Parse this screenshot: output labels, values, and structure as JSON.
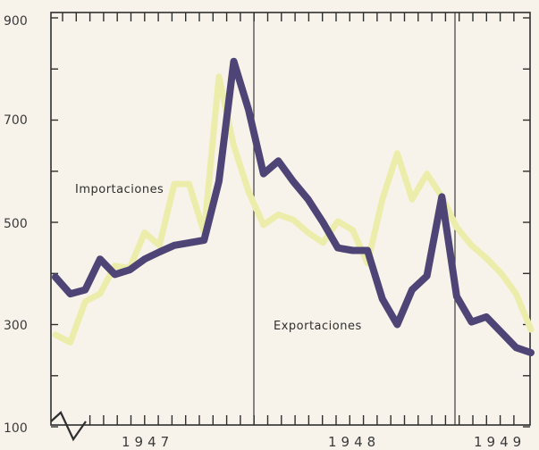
{
  "chart_data": {
    "type": "line",
    "x": [
      "1947-01",
      "1947-02",
      "1947-03",
      "1947-04",
      "1947-05",
      "1947-06",
      "1947-07",
      "1947-08",
      "1947-09",
      "1947-10",
      "1947-11",
      "1947-12",
      "1948-01",
      "1948-02",
      "1948-03",
      "1948-04",
      "1948-05",
      "1948-06",
      "1948-07",
      "1948-08",
      "1948-09",
      "1948-10",
      "1948-11",
      "1948-12",
      "1949-01",
      "1949-02",
      "1949-03",
      "1949-04",
      "1949-05",
      "1949-06",
      "1949-07",
      "1949-08",
      "1949-09"
    ],
    "series": [
      {
        "name": "Importaciones",
        "color": "#4e4476",
        "values": [
          393,
          360,
          368,
          428,
          398,
          407,
          428,
          442,
          455,
          460,
          465,
          580,
          815,
          720,
          595,
          620,
          580,
          545,
          500,
          450,
          445,
          445,
          350,
          300,
          368,
          395,
          550,
          355,
          305,
          315,
          285,
          255,
          245
        ]
      },
      {
        "name": "Exportaciones",
        "color": "#ecedab",
        "values": [
          280,
          265,
          345,
          360,
          415,
          410,
          480,
          455,
          575,
          575,
          480,
          785,
          650,
          560,
          495,
          515,
          505,
          480,
          460,
          502,
          485,
          420,
          545,
          635,
          545,
          595,
          550,
          490,
          455,
          430,
          400,
          360,
          290
        ]
      }
    ],
    "ylim": [
      100,
      900
    ],
    "yticks": [
      100,
      300,
      500,
      700,
      900
    ],
    "ytick_labels": [
      "100",
      "300",
      "500",
      "700",
      "900"
    ],
    "xtick_labels": [
      "1947",
      "1948",
      "1949"
    ],
    "annotations": [
      "Importaciones",
      "Exportaciones"
    ],
    "grid": false
  }
}
